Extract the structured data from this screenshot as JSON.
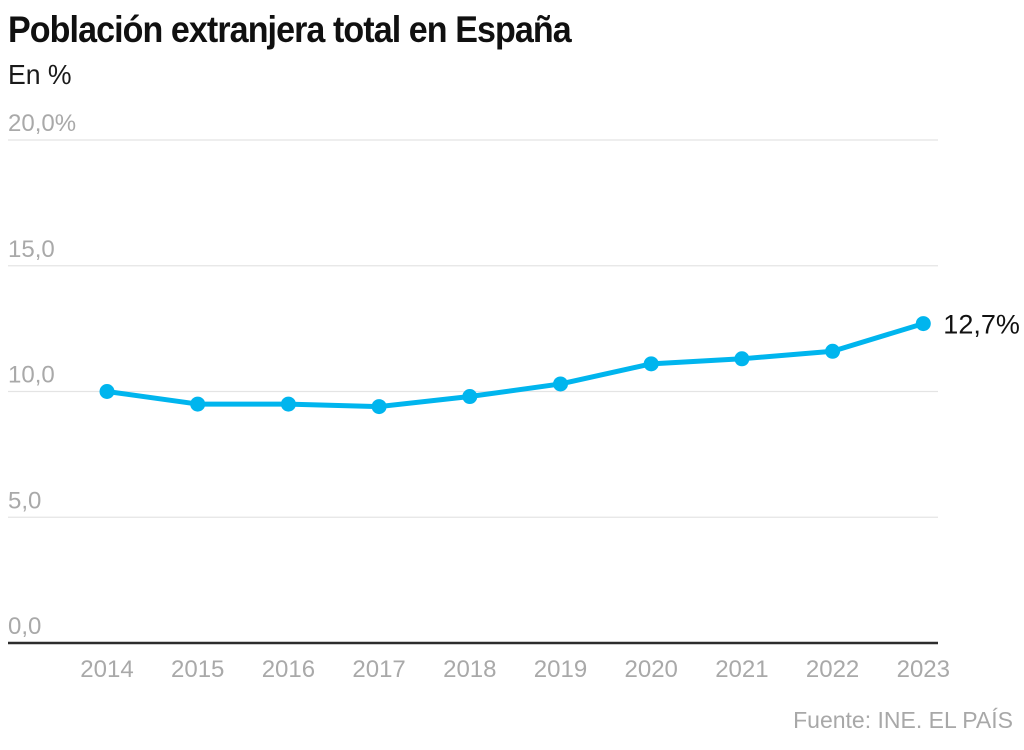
{
  "header": {
    "title": "Población extranjera total en España",
    "subtitle": "En %"
  },
  "source": "Fuente: INE. EL PAÍS",
  "colors": {
    "line": "#00b5ee",
    "point": "#00b5ee",
    "grid": "#e4e4e4",
    "axis": "#2d2d2d",
    "tick_label": "#a9a9a9",
    "annotation": "#111111"
  },
  "chart_data": {
    "type": "line",
    "title": "Población extranjera total en España",
    "ylabel": "En %",
    "xlabel": "",
    "categories": [
      "2014",
      "2015",
      "2016",
      "2017",
      "2018",
      "2019",
      "2020",
      "2021",
      "2022",
      "2023"
    ],
    "series": [
      {
        "name": "Población extranjera total",
        "values": [
          10.0,
          9.5,
          9.5,
          9.4,
          9.8,
          10.3,
          11.1,
          11.3,
          11.6,
          12.7
        ]
      }
    ],
    "ylim": [
      0,
      20
    ],
    "yticks": [
      {
        "value": 0,
        "label": "0,0"
      },
      {
        "value": 5,
        "label": "5,0"
      },
      {
        "value": 10,
        "label": "10,0"
      },
      {
        "value": 15,
        "label": "15,0"
      },
      {
        "value": 20,
        "label": "20,0%"
      }
    ],
    "grid": true,
    "legend": false,
    "last_value_label": "12,7%"
  }
}
